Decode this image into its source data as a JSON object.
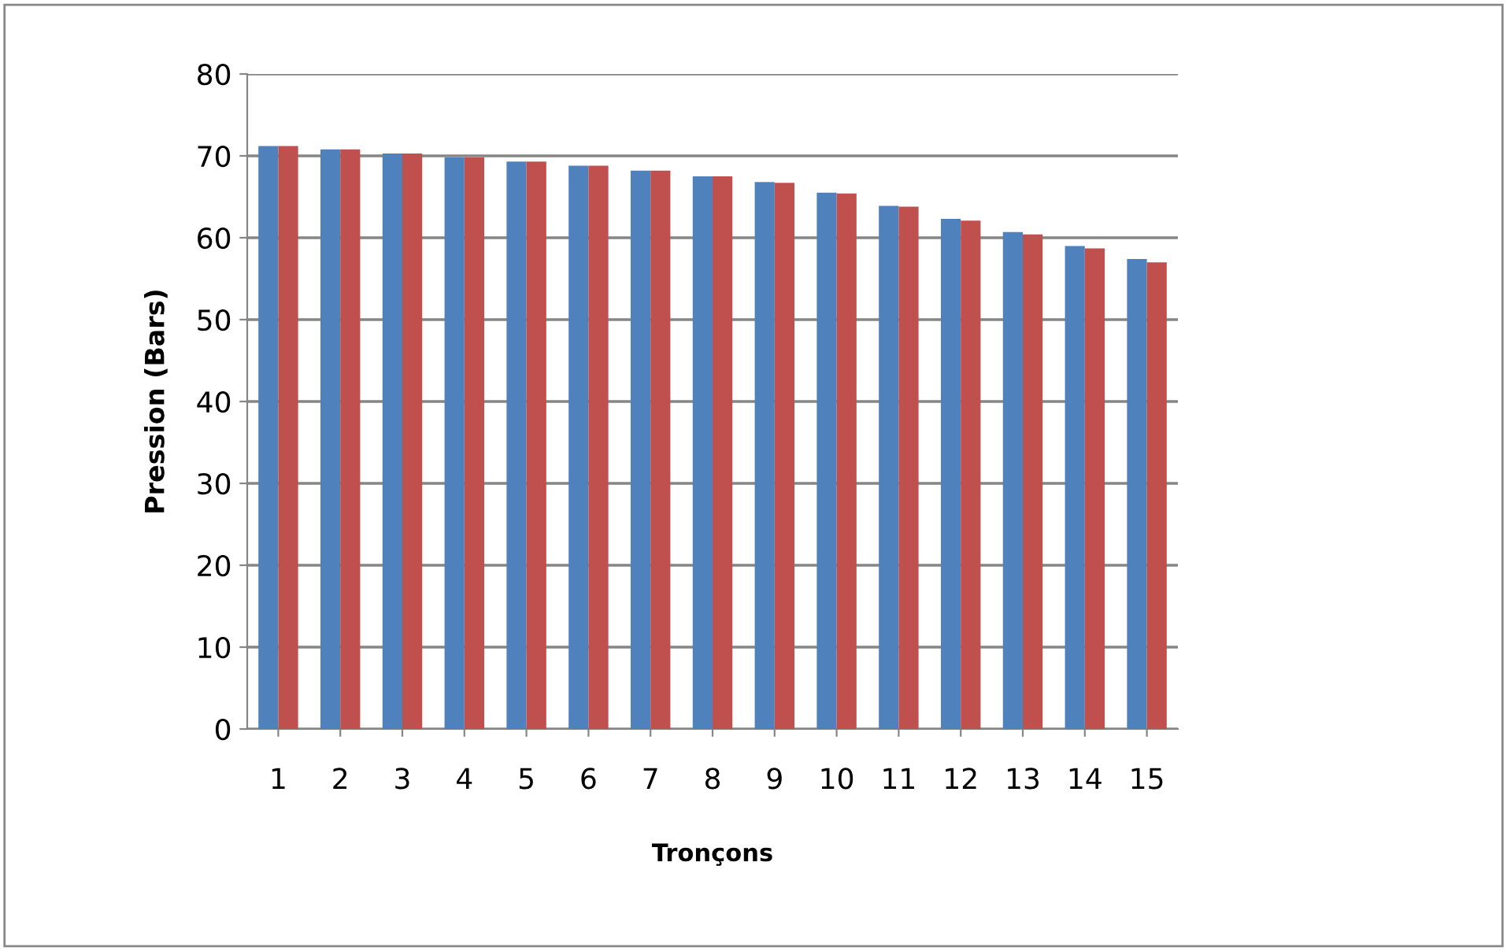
{
  "chart_data": {
    "type": "bar",
    "xlabel": "Tronçons",
    "ylabel": "Pression (Bars)",
    "categories": [
      "1",
      "2",
      "3",
      "4",
      "5",
      "6",
      "7",
      "8",
      "9",
      "10",
      "11",
      "12",
      "13",
      "14",
      "15"
    ],
    "series": [
      {
        "color": "#4f81bd",
        "values": [
          71.2,
          70.8,
          70.3,
          69.8,
          69.3,
          68.8,
          68.2,
          67.5,
          66.8,
          65.5,
          63.9,
          62.3,
          60.7,
          59,
          57.4
        ]
      },
      {
        "color": "#c0504d",
        "values": [
          71.2,
          70.8,
          70.3,
          69.8,
          69.3,
          68.8,
          68.2,
          67.5,
          66.7,
          65.4,
          63.8,
          62.1,
          60.4,
          58.7,
          57
        ]
      }
    ],
    "ylim": [
      0,
      80
    ],
    "yticks": [
      0,
      10,
      20,
      30,
      40,
      50,
      60,
      70,
      80
    ],
    "grid": "y"
  }
}
